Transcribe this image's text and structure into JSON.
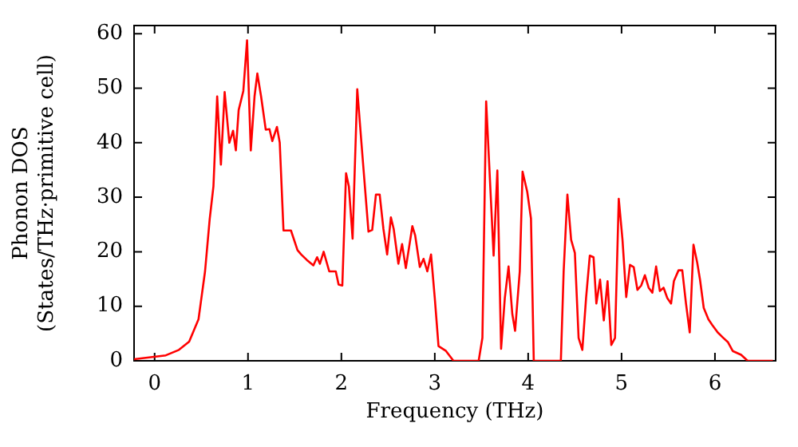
{
  "chart_data": {
    "type": "line",
    "xlabel": "Frequency (THz)",
    "ylabel": "Phonon DOS\n(States/THz·primitive cell)",
    "xlim": [
      -0.22,
      6.65
    ],
    "xticks": [
      0,
      1,
      2,
      3,
      4,
      5,
      6
    ],
    "ylim": [
      0,
      61.5
    ],
    "yticks": [
      0,
      10,
      20,
      30,
      40,
      50,
      60
    ],
    "grid": false,
    "legend": false,
    "marker": "none",
    "line_style": "solid",
    "series": [
      {
        "color": "#ff0000",
        "x": [
          -0.22,
          0.03,
          0.12,
          0.26,
          0.37,
          0.47,
          0.54,
          0.59,
          0.63,
          0.67,
          0.71,
          0.75,
          0.8,
          0.84,
          0.87,
          0.9,
          0.95,
          0.99,
          1.03,
          1.07,
          1.1,
          1.14,
          1.19,
          1.23,
          1.26,
          1.31,
          1.34,
          1.38,
          1.46,
          1.53,
          1.57,
          1.63,
          1.7,
          1.74,
          1.77,
          1.81,
          1.87,
          1.94,
          1.97,
          2.01,
          2.05,
          2.08,
          2.12,
          2.17,
          2.22,
          2.29,
          2.33,
          2.37,
          2.41,
          2.45,
          2.49,
          2.53,
          2.56,
          2.61,
          2.65,
          2.69,
          2.76,
          2.79,
          2.84,
          2.88,
          2.92,
          2.96,
          3.0,
          3.04,
          3.12,
          3.2,
          3.47,
          3.51,
          3.55,
          3.63,
          3.67,
          3.71,
          3.75,
          3.79,
          3.83,
          3.86,
          3.91,
          3.94,
          3.99,
          4.03,
          4.06,
          4.35,
          4.38,
          4.42,
          4.46,
          4.5,
          4.54,
          4.58,
          4.62,
          4.66,
          4.7,
          4.73,
          4.77,
          4.81,
          4.85,
          4.89,
          4.93,
          4.97,
          5.01,
          5.05,
          5.09,
          5.13,
          5.17,
          5.21,
          5.25,
          5.29,
          5.33,
          5.37,
          5.41,
          5.45,
          5.49,
          5.53,
          5.56,
          5.61,
          5.65,
          5.69,
          5.73,
          5.77,
          5.81,
          5.84,
          5.88,
          5.93,
          5.97,
          6.03,
          6.09,
          6.14,
          6.19,
          6.28,
          6.35,
          6.62
        ],
        "values": [
          0.3,
          0.8,
          1,
          2,
          3.5,
          7.6,
          16.4,
          26,
          32,
          48.5,
          36,
          49.3,
          40,
          42.2,
          38.6,
          46,
          49.5,
          58.8,
          38.6,
          48.5,
          52.7,
          48.5,
          42.4,
          42.5,
          40.3,
          42.9,
          40,
          23.9,
          23.9,
          20.3,
          19.5,
          18.5,
          17.5,
          19,
          17.8,
          20,
          16.4,
          16.4,
          14,
          13.8,
          34.4,
          32,
          22.4,
          49.8,
          38.8,
          23.7,
          24,
          30.5,
          30.5,
          24.2,
          19.5,
          26.3,
          24.2,
          17.8,
          21.4,
          17,
          24.7,
          23,
          17.2,
          18.7,
          16.4,
          19.5,
          11.5,
          2.7,
          1.8,
          0,
          0,
          4.2,
          47.6,
          19.3,
          34.9,
          2.2,
          11.5,
          17.3,
          8.6,
          5.5,
          16.4,
          34.7,
          31,
          26.1,
          0,
          0,
          16.4,
          30.5,
          22.2,
          19.8,
          4.2,
          2,
          11.5,
          19.3,
          19,
          10.5,
          14.9,
          7.4,
          14.6,
          2.9,
          4.2,
          29.7,
          22.2,
          11.7,
          17.6,
          17.2,
          13,
          13.8,
          15.7,
          13.4,
          12.5,
          17.3,
          12.8,
          13.4,
          11.5,
          10.5,
          14.6,
          16.6,
          16.6,
          10.5,
          5.2,
          21.3,
          18,
          14.9,
          9.7,
          7.6,
          6.6,
          5.2,
          4.2,
          3.4,
          1.8,
          1.1,
          0,
          0
        ]
      }
    ]
  }
}
